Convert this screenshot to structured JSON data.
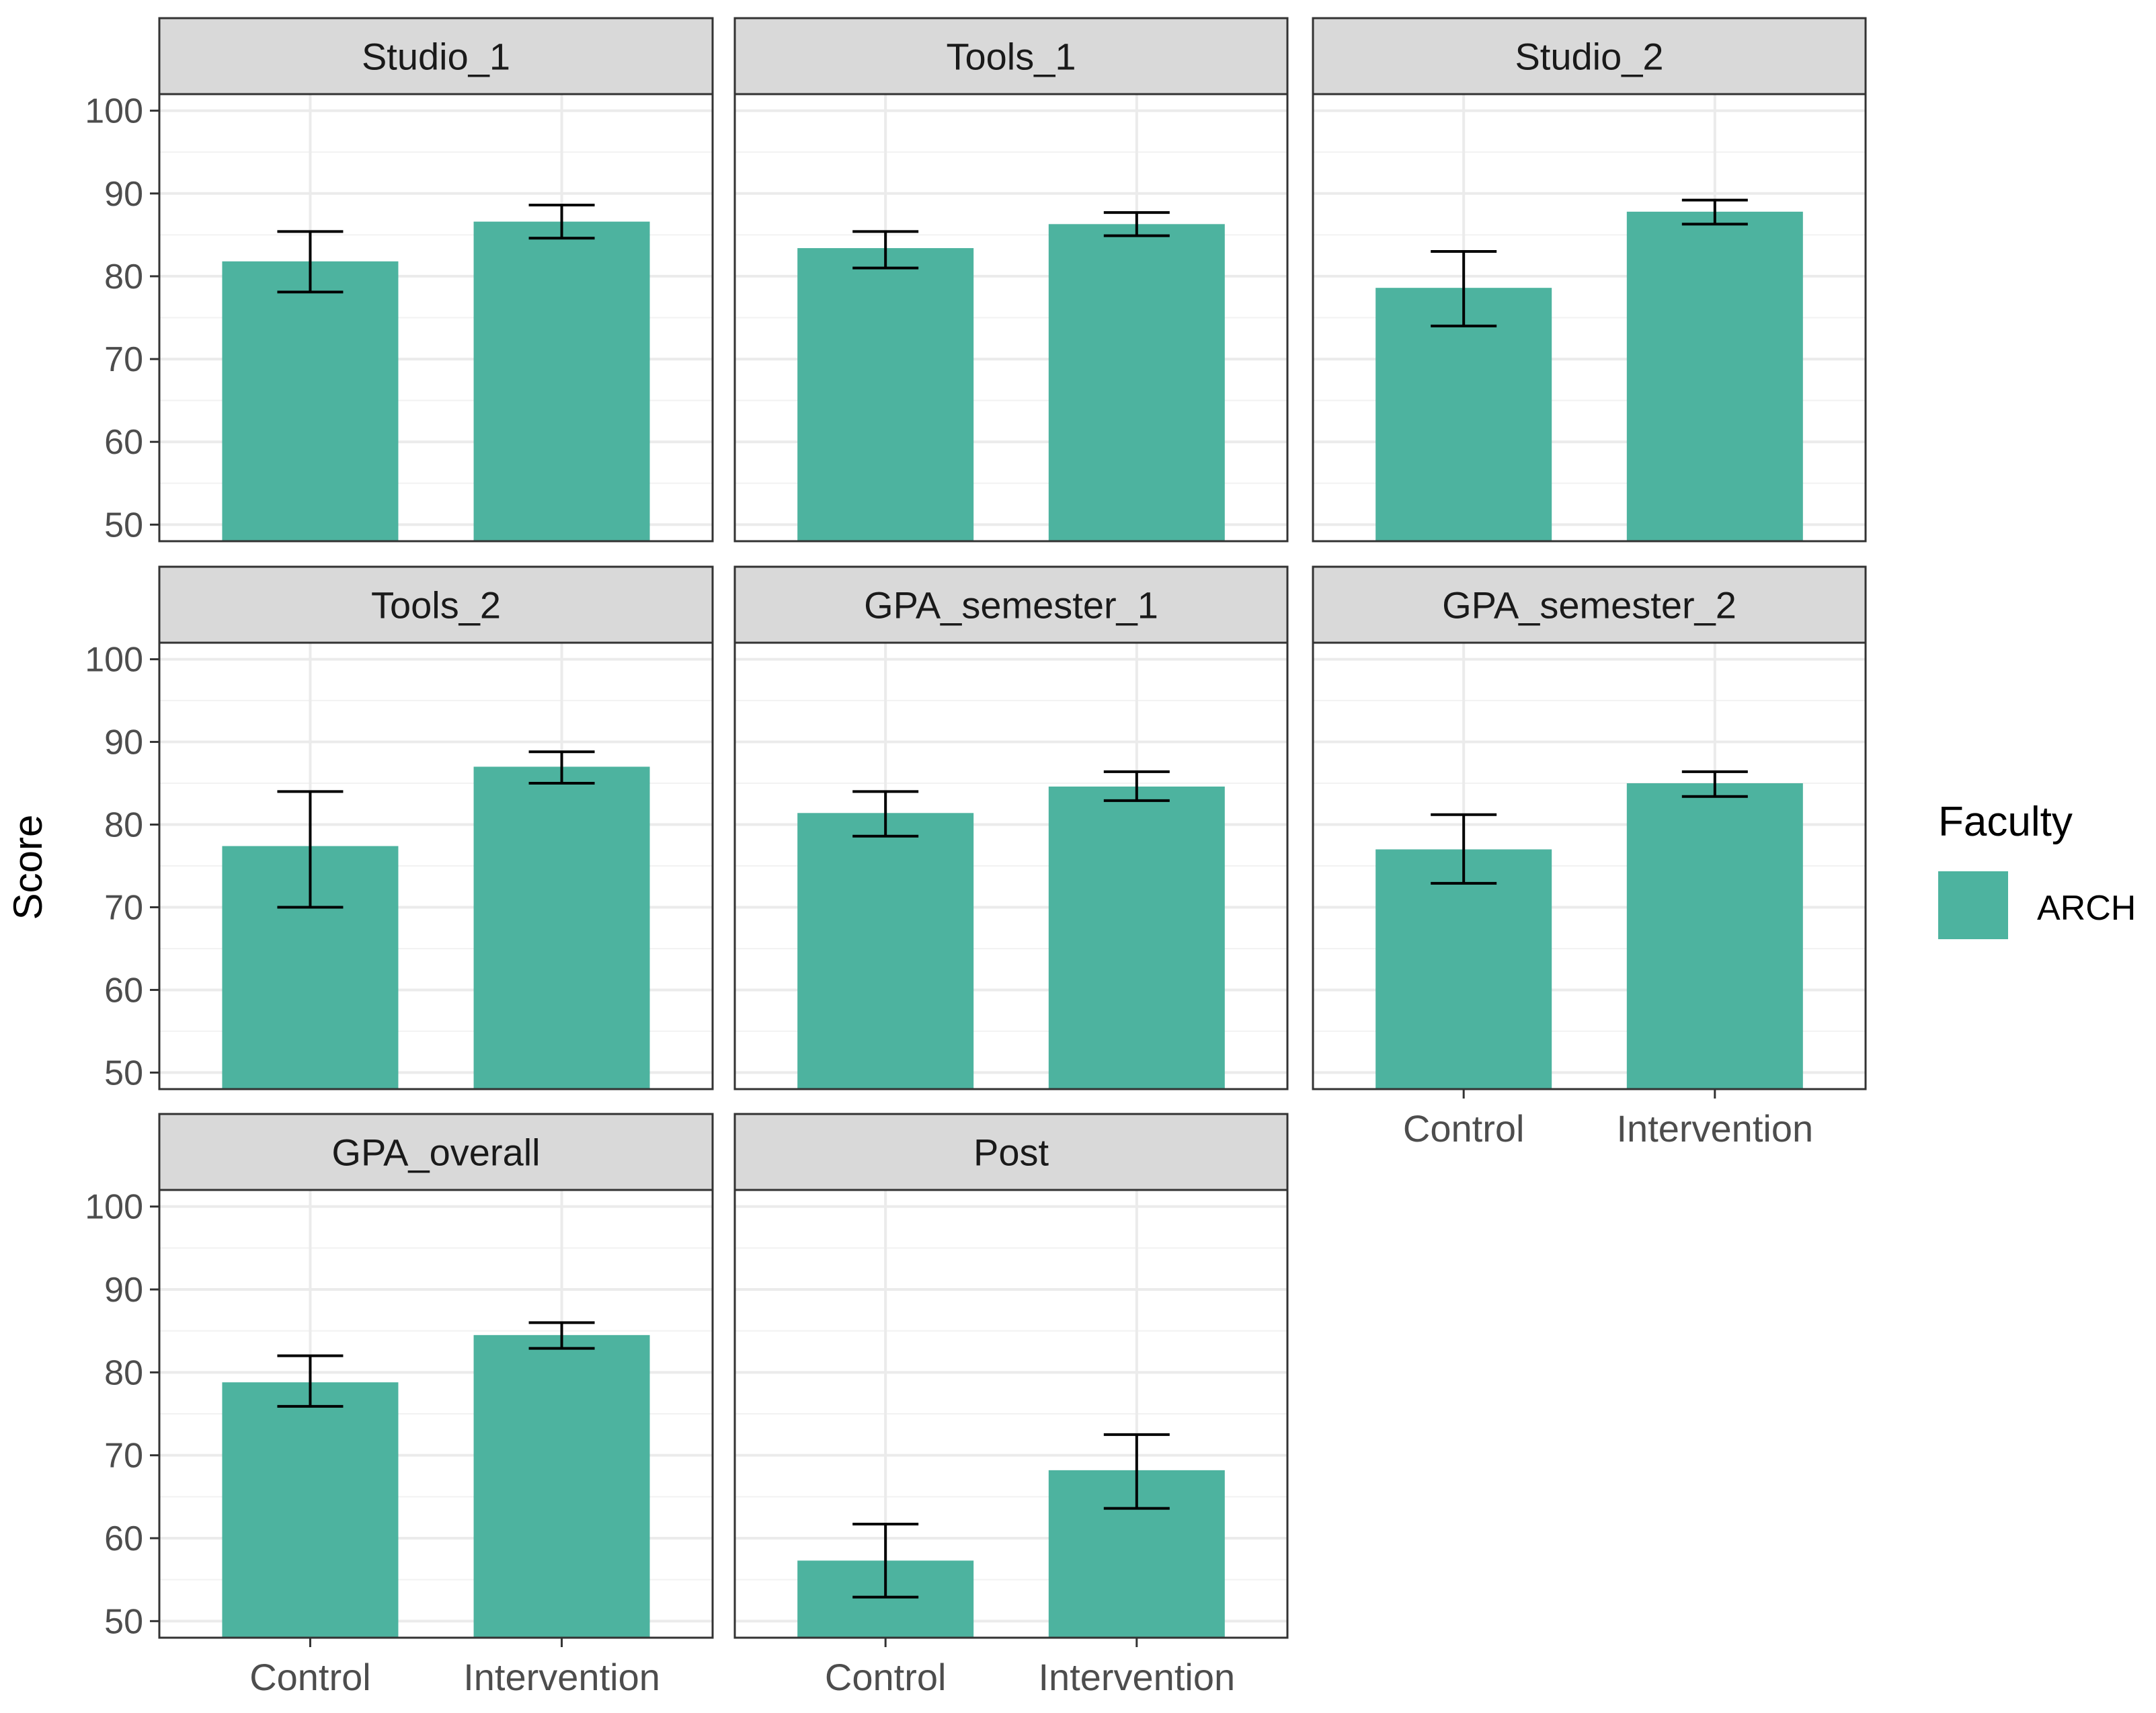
{
  "chart_data": {
    "type": "bar",
    "layout": "facet-wrap",
    "ylabel": "Score",
    "xlabel": "",
    "ylim": [
      48,
      102
    ],
    "yticks": [
      50,
      60,
      70,
      80,
      90,
      100
    ],
    "categories": [
      "Control",
      "Intervention"
    ],
    "legend": {
      "title": "Faculty",
      "position": "right",
      "entries": [
        {
          "label": "ARCH",
          "color": "#4db39f"
        }
      ]
    },
    "bar_color": "#4db39f",
    "panel_strip_color": "#d9d9d9",
    "grid": true,
    "panels": [
      {
        "title": "Studio_1",
        "values": [
          81.8,
          86.6
        ],
        "error_low": [
          78.1,
          84.6
        ],
        "error_high": [
          85.4,
          88.6
        ]
      },
      {
        "title": "Tools_1",
        "values": [
          83.4,
          86.3
        ],
        "error_low": [
          81.0,
          84.9
        ],
        "error_high": [
          85.4,
          87.7
        ]
      },
      {
        "title": "Studio_2",
        "values": [
          78.6,
          87.8
        ],
        "error_low": [
          74.0,
          86.3
        ],
        "error_high": [
          83.0,
          89.2
        ]
      },
      {
        "title": "Tools_2",
        "values": [
          77.4,
          87.0
        ],
        "error_low": [
          70.0,
          85.0
        ],
        "error_high": [
          84.0,
          88.8
        ]
      },
      {
        "title": "GPA_semester_1",
        "values": [
          81.4,
          84.6
        ],
        "error_low": [
          78.6,
          82.9
        ],
        "error_high": [
          84.0,
          86.4
        ]
      },
      {
        "title": "GPA_semester_2",
        "values": [
          77.0,
          85.0
        ],
        "error_low": [
          72.9,
          83.4
        ],
        "error_high": [
          81.2,
          86.4
        ]
      },
      {
        "title": "GPA_overall",
        "values": [
          78.8,
          84.5
        ],
        "error_low": [
          75.9,
          82.9
        ],
        "error_high": [
          82.0,
          86.0
        ]
      },
      {
        "title": "Post",
        "values": [
          57.3,
          68.2
        ],
        "error_low": [
          52.9,
          63.6
        ],
        "error_high": [
          61.7,
          72.5
        ]
      }
    ]
  }
}
